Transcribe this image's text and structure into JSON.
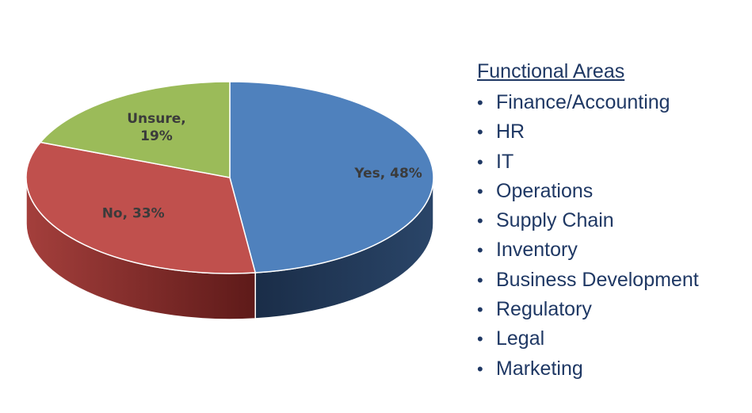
{
  "chart_data": {
    "type": "pie",
    "style": "3d-tilted",
    "slices": [
      {
        "label": "Yes",
        "value": 48,
        "display": "Yes, 48%",
        "color": "#4f81bd",
        "side_color": "#1f3553"
      },
      {
        "label": "No",
        "value": 33,
        "display": "No, 33%",
        "color": "#c0504d",
        "side_color": "#8e2a28"
      },
      {
        "label": "Unsure",
        "value": 19,
        "display_lines": [
          "Unsure,",
          "19%"
        ],
        "color": "#9bbb59",
        "side_color": "#5e7630"
      }
    ],
    "label_color": "#3b3b3b",
    "unit": "%"
  },
  "legend": {
    "title": "Functional Areas",
    "bullet": "•",
    "items": [
      "Finance/Accounting",
      "HR",
      "IT",
      "Operations",
      "Supply Chain",
      "Inventory",
      "Business Development",
      "Regulatory",
      "Legal",
      "Marketing"
    ],
    "text_color": "#1f3864"
  }
}
